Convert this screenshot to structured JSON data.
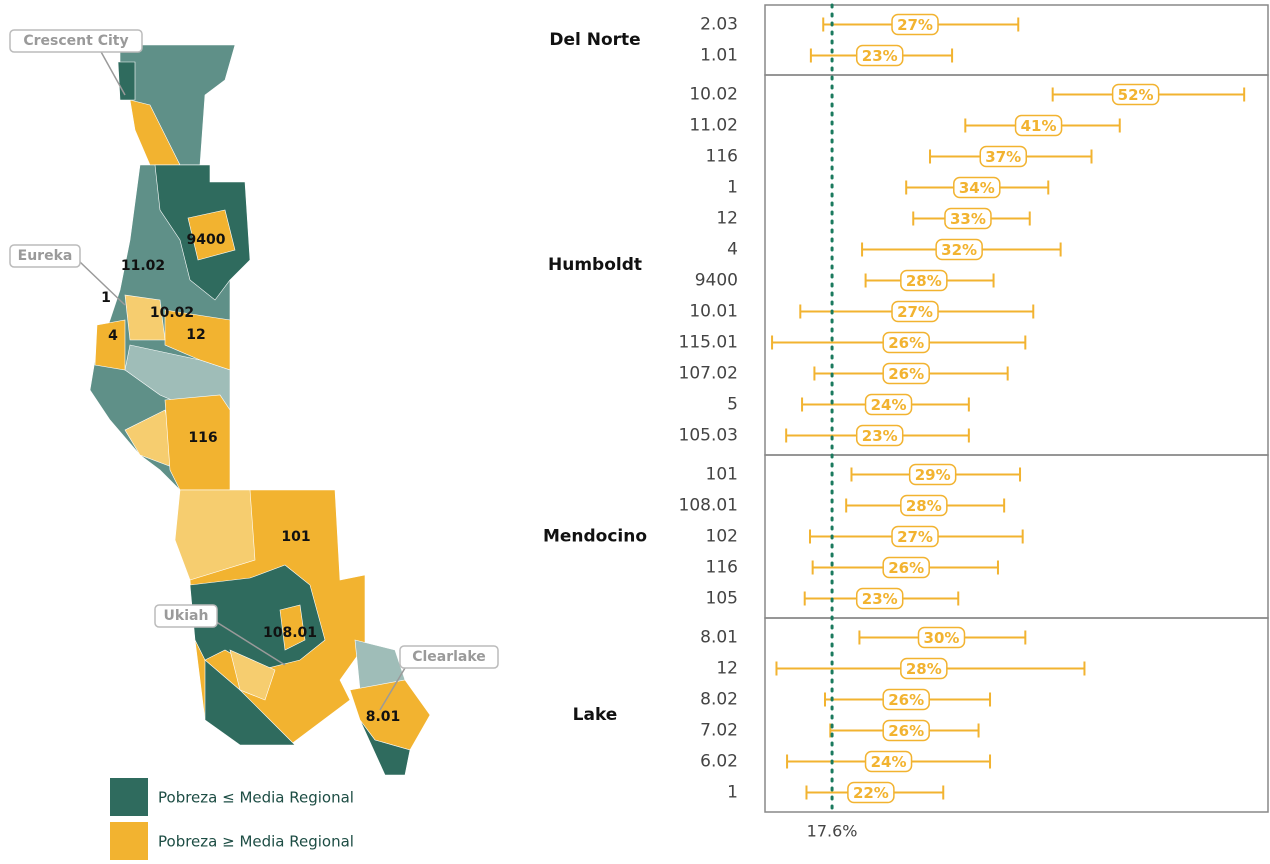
{
  "map": {
    "places": [
      "Crescent City",
      "Eureka",
      "Ukiah",
      "Clearlake"
    ],
    "tracts": [
      "9400",
      "11.02",
      "1",
      "10.02",
      "4",
      "12",
      "116",
      "101",
      "108.01",
      "8.01"
    ],
    "legend": [
      {
        "label": "Pobreza ≤ Media Regional",
        "color": "#2f6b5e"
      },
      {
        "label": "Pobreza ≥ Media Regional",
        "color": "#f2b330"
      }
    ]
  },
  "chart_data": {
    "type": "errorbar",
    "color": "#f2b330",
    "xlim": [
      10,
      67
    ],
    "reference": {
      "value": 17.6,
      "label": "17.6%",
      "color": "#1b7a5e"
    },
    "groups": [
      {
        "name": "Del Norte",
        "categories": [
          "2.03",
          "1.01"
        ],
        "values": [
          27,
          23
        ],
        "value_labels": [
          "27%",
          "23%"
        ],
        "lower": [
          16.6,
          15.2
        ],
        "upper": [
          38.7,
          31.2
        ]
      },
      {
        "name": "Humboldt",
        "categories": [
          "10.02",
          "11.02",
          "116",
          "1",
          "12",
          "4",
          "9400",
          "10.01",
          "115.01",
          "107.02",
          "5",
          "105.03"
        ],
        "values": [
          52,
          41,
          37,
          34,
          33,
          32,
          28,
          27,
          26,
          26,
          24,
          23
        ],
        "value_labels": [
          "52%",
          "41%",
          "37%",
          "34%",
          "33%",
          "32%",
          "28%",
          "27%",
          "26%",
          "26%",
          "24%",
          "23%"
        ],
        "lower": [
          42.6,
          32.7,
          28.7,
          26.0,
          26.8,
          21.0,
          21.4,
          14.0,
          10.8,
          15.6,
          14.2,
          12.4
        ],
        "upper": [
          64.3,
          50.2,
          47.0,
          42.1,
          40.0,
          43.5,
          35.9,
          40.4,
          39.5,
          37.5,
          33.1,
          33.1
        ]
      },
      {
        "name": "Mendocino",
        "categories": [
          "101",
          "108.01",
          "102",
          "116",
          "105"
        ],
        "values": [
          29,
          28,
          27,
          26,
          23
        ],
        "value_labels": [
          "29%",
          "28%",
          "27%",
          "26%",
          "23%"
        ],
        "lower": [
          19.8,
          19.2,
          15.1,
          15.4,
          14.5
        ],
        "upper": [
          38.9,
          37.1,
          39.2,
          36.4,
          31.9
        ]
      },
      {
        "name": "Lake",
        "categories": [
          "8.01",
          "12",
          "8.02",
          "7.02",
          "6.02",
          "1"
        ],
        "values": [
          30,
          28,
          26,
          26,
          24,
          22
        ],
        "value_labels": [
          "30%",
          "28%",
          "26%",
          "26%",
          "24%",
          "22%"
        ],
        "lower": [
          20.7,
          11.3,
          16.8,
          17.4,
          12.5,
          14.7
        ],
        "upper": [
          39.5,
          46.2,
          35.5,
          34.2,
          35.5,
          30.2
        ]
      }
    ]
  }
}
